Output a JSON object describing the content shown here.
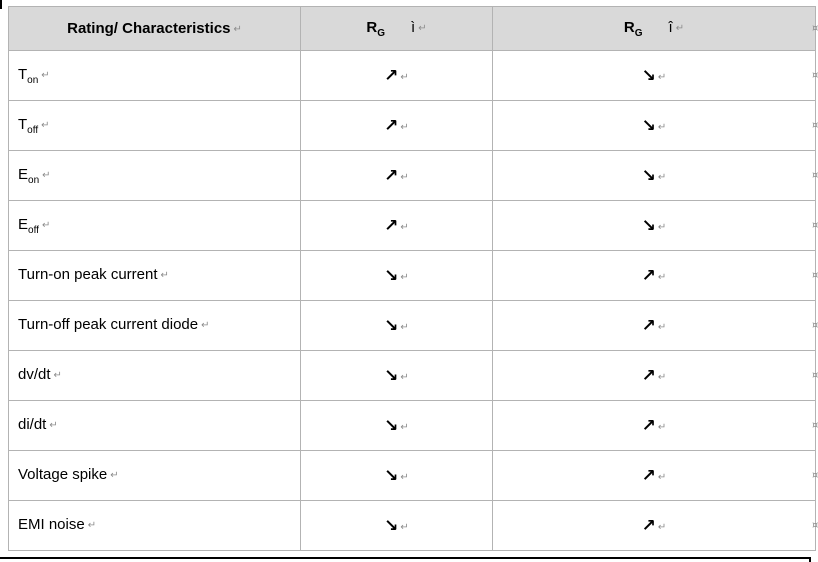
{
  "marks": {
    "para": "↵",
    "cell_end": "¤"
  },
  "table": {
    "header": {
      "col1": "Rating/ Characteristics",
      "rg_base": "R",
      "rg_sub": "G",
      "col2_symbol": "ì",
      "col3_symbol": "î"
    },
    "rows": [
      {
        "label": "T",
        "sub": "on",
        "rg_low": "↗",
        "rg_high": "↘"
      },
      {
        "label": "T",
        "sub": "off",
        "rg_low": "↗",
        "rg_high": "↘"
      },
      {
        "label": "E",
        "sub": "on",
        "rg_low": "↗",
        "rg_high": "↘"
      },
      {
        "label": "E",
        "sub": "off",
        "rg_low": "↗",
        "rg_high": "↘"
      },
      {
        "label": "Turn-on peak current",
        "sub": "",
        "rg_low": "↘",
        "rg_high": "↗"
      },
      {
        "label": "Turn-off peak current diode",
        "sub": "",
        "rg_low": "↘",
        "rg_high": "↗"
      },
      {
        "label": "dv/dt",
        "sub": "",
        "rg_low": "↘",
        "rg_high": "↗"
      },
      {
        "label": "di/dt",
        "sub": "",
        "rg_low": "↘",
        "rg_high": "↗"
      },
      {
        "label": "Voltage spike",
        "sub": "",
        "rg_low": "↘",
        "rg_high": "↗"
      },
      {
        "label": "EMI noise",
        "sub": "",
        "rg_low": "↘",
        "rg_high": "↗"
      }
    ]
  },
  "colors": {
    "header_bg": "#d9d9d9",
    "border": "#b3b3b3",
    "mark_gray": "#8c8c8c",
    "text": "#000000"
  }
}
